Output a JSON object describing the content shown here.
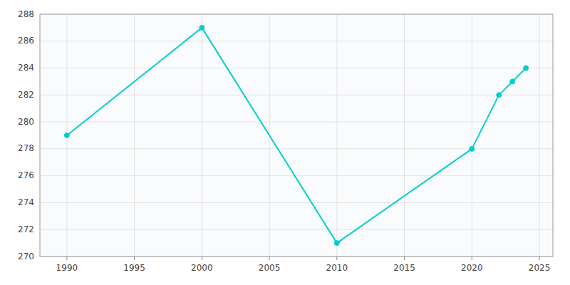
{
  "chart_data": {
    "type": "line",
    "x": [
      1990,
      2000,
      2010,
      2020,
      2022,
      2023,
      2024
    ],
    "values": [
      279,
      287,
      271,
      278,
      282,
      283,
      284
    ],
    "color": "#00CFCF",
    "marker": "circle",
    "xlim": [
      1988,
      2026
    ],
    "ylim": [
      270,
      288
    ],
    "xticks": [
      1990,
      1995,
      2000,
      2005,
      2010,
      2015,
      2020,
      2025
    ],
    "yticks": [
      270,
      272,
      274,
      276,
      278,
      280,
      282,
      284,
      286,
      288
    ],
    "grid": true
  }
}
